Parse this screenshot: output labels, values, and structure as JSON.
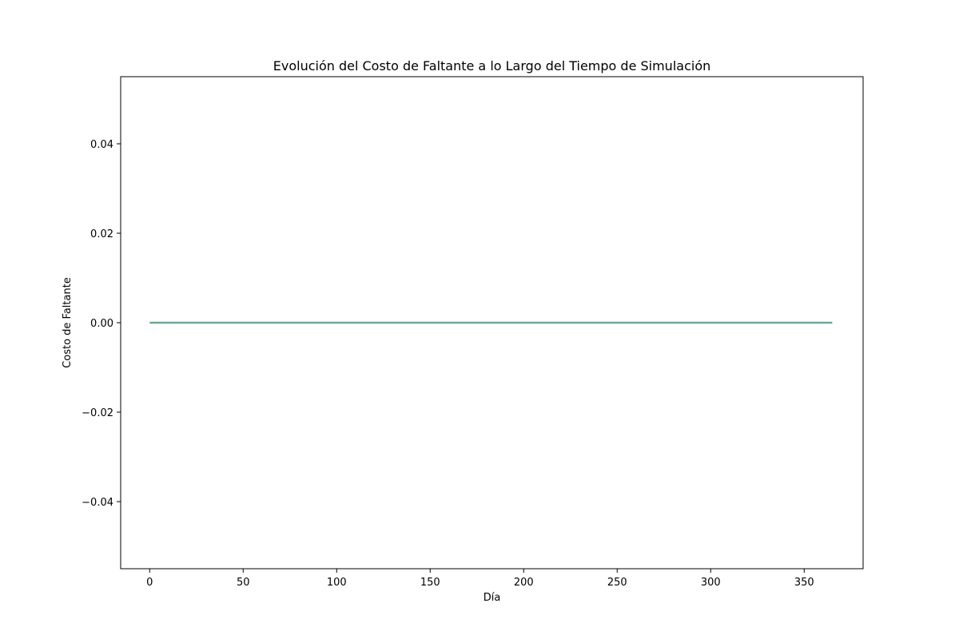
{
  "chart_data": {
    "type": "line",
    "title": "Evolución del Costo de Faltante a lo Largo del Tiempo de Simulación",
    "xlabel": "Día",
    "ylabel": "Costo de Faltante",
    "xlim": [
      -15.5,
      381.5
    ],
    "ylim": [
      -0.055,
      0.055
    ],
    "x_ticks": [
      0,
      50,
      100,
      150,
      200,
      250,
      300,
      350
    ],
    "x_tick_labels": [
      "0",
      "50",
      "100",
      "150",
      "200",
      "250",
      "300",
      "350"
    ],
    "y_ticks": [
      -0.04,
      -0.02,
      0.0,
      0.02,
      0.04
    ],
    "y_tick_labels": [
      "−0.04",
      "−0.02",
      "0.00",
      "0.02",
      "0.04"
    ],
    "grid": false,
    "series": [
      {
        "color": "#6aa898",
        "x": [
          0,
          365
        ],
        "y": [
          0,
          0
        ]
      }
    ]
  }
}
